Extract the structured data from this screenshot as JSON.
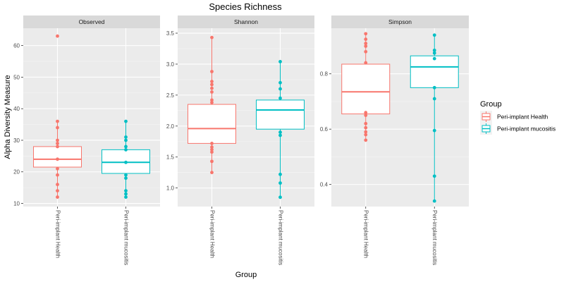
{
  "chart_data": {
    "type": "box",
    "title": "Species Richness",
    "xlabel": "Group",
    "ylabel": "Alpha Diversity Measure",
    "legend": {
      "title": "Group",
      "placement": "right",
      "entries": [
        "Peri-implant Health",
        "Peri-implant mucositis"
      ]
    },
    "categories": [
      "Peri-implant Health",
      "Peri-implant mucositis"
    ],
    "colors": {
      "Peri-implant Health": "#F8766D",
      "Peri-implant mucositis": "#00BFC4",
      "panel_bg": "#EBEBEB",
      "strip_bg": "#D9D9D9",
      "grid": "#FFFFFF"
    },
    "panels": [
      {
        "name": "Observed",
        "ylim": [
          9,
          65.5
        ],
        "yticks": [
          10,
          20,
          30,
          40,
          50,
          60
        ],
        "ytick_labels": [
          "10",
          "20",
          "30",
          "40",
          "50",
          "60"
        ],
        "boxes": [
          {
            "group": "Peri-implant Health",
            "min": 12,
            "q1": 21.5,
            "median": 24,
            "q3": 28,
            "max": 36,
            "points": [
              63,
              36,
              34,
              30,
              29,
              28,
              24,
              21,
              19,
              16,
              14,
              12
            ]
          },
          {
            "group": "Peri-implant mucositis",
            "min": 12,
            "q1": 19.5,
            "median": 23,
            "q3": 27,
            "max": 36,
            "points": [
              36,
              31,
              30,
              28,
              27,
              23,
              19,
              18,
              14,
              13,
              12
            ]
          }
        ]
      },
      {
        "name": "Shannon",
        "ylim": [
          0.7,
          3.58
        ],
        "yticks": [
          1.0,
          1.5,
          2.0,
          2.5,
          3.0,
          3.5
        ],
        "ytick_labels": [
          "1.0",
          "1.5",
          "2.0",
          "2.5",
          "3.0",
          "3.5"
        ],
        "boxes": [
          {
            "group": "Peri-implant Health",
            "min": 1.25,
            "q1": 1.72,
            "median": 1.96,
            "q3": 2.35,
            "max": 3.43,
            "points": [
              3.43,
              2.88,
              2.72,
              2.67,
              2.61,
              2.55,
              2.42,
              2.38,
              1.72,
              1.66,
              1.62,
              1.58,
              1.43,
              1.25
            ]
          },
          {
            "group": "Peri-implant mucositis",
            "min": 0.85,
            "q1": 1.95,
            "median": 2.26,
            "q3": 2.42,
            "max": 3.04,
            "points": [
              3.04,
              2.7,
              2.6,
              2.45,
              1.9,
              1.85,
              1.22,
              1.08,
              0.85
            ]
          }
        ]
      },
      {
        "name": "Simpson",
        "ylim": [
          0.32,
          0.965
        ],
        "yticks": [
          0.4,
          0.6,
          0.8
        ],
        "ytick_labels": [
          "0.4",
          "0.6",
          "0.8"
        ],
        "boxes": [
          {
            "group": "Peri-implant Health",
            "min": 0.56,
            "q1": 0.655,
            "median": 0.735,
            "q3": 0.835,
            "max": 0.945,
            "points": [
              0.945,
              0.925,
              0.91,
              0.9,
              0.88,
              0.84,
              0.66,
              0.65,
              0.62,
              0.605,
              0.59,
              0.58,
              0.56
            ]
          },
          {
            "group": "Peri-implant mucositis",
            "min": 0.34,
            "q1": 0.75,
            "median": 0.825,
            "q3": 0.865,
            "max": 0.94,
            "points": [
              0.94,
              0.885,
              0.875,
              0.855,
              0.75,
              0.71,
              0.595,
              0.43,
              0.34
            ]
          }
        ]
      }
    ]
  }
}
